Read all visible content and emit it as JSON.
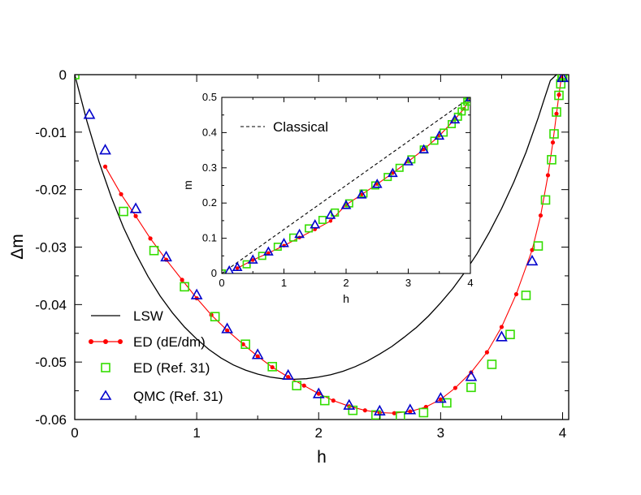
{
  "chart_data": [
    {
      "type": "scatter",
      "title": "",
      "xlabel": "h",
      "ylabel": "Δm",
      "xlim": [
        0,
        4.05
      ],
      "ylim": [
        -0.06,
        0
      ],
      "xticks": [
        "0",
        "1",
        "2",
        "3",
        "4"
      ],
      "yticks": [
        "0",
        "-0.01",
        "-0.02",
        "-0.03",
        "-0.04",
        "-0.05",
        "-0.06"
      ],
      "legend": {
        "position": "lower-left",
        "entries": [
          "LSW",
          "ED (dE/dm)",
          "ED (Ref. 31)",
          "QMC (Ref. 31)"
        ]
      },
      "series": [
        {
          "name": "LSW",
          "style": "line",
          "color": "#000000",
          "x": [
            0,
            0.1,
            0.2,
            0.3,
            0.4,
            0.5,
            0.6,
            0.7,
            0.8,
            0.9,
            1.0,
            1.1,
            1.2,
            1.3,
            1.4,
            1.5,
            1.6,
            1.7,
            1.8,
            1.9,
            2.0,
            2.1,
            2.2,
            2.3,
            2.4,
            2.5,
            2.6,
            2.7,
            2.8,
            2.9,
            3.0,
            3.1,
            3.2,
            3.3,
            3.4,
            3.5,
            3.6,
            3.7,
            3.8,
            3.85,
            3.9,
            3.95,
            4.0
          ],
          "y": [
            0,
            -0.0081,
            -0.0152,
            -0.0213,
            -0.0266,
            -0.0311,
            -0.0351,
            -0.0385,
            -0.0414,
            -0.0439,
            -0.046,
            -0.0478,
            -0.0493,
            -0.0505,
            -0.0514,
            -0.0521,
            -0.0526,
            -0.0529,
            -0.053,
            -0.0529,
            -0.0526,
            -0.0522,
            -0.0516,
            -0.0508,
            -0.0498,
            -0.0486,
            -0.0473,
            -0.0457,
            -0.044,
            -0.042,
            -0.0397,
            -0.0372,
            -0.0343,
            -0.0311,
            -0.0274,
            -0.0233,
            -0.0187,
            -0.0135,
            -0.0075,
            -0.0042,
            -0.001,
            0,
            0
          ]
        },
        {
          "name": "ED (dE/dm)",
          "style": "line+dots",
          "color": "#ff0000",
          "x": [
            0.25,
            0.38,
            0.5,
            0.62,
            0.75,
            0.88,
            1.0,
            1.12,
            1.25,
            1.38,
            1.5,
            1.62,
            1.75,
            1.88,
            2.0,
            2.12,
            2.25,
            2.38,
            2.5,
            2.62,
            2.75,
            2.88,
            3.0,
            3.12,
            3.25,
            3.38,
            3.5,
            3.62,
            3.75,
            3.82,
            3.88,
            3.92,
            3.95,
            3.97,
            3.99
          ],
          "y": [
            -0.016,
            -0.0208,
            -0.0246,
            -0.0285,
            -0.0322,
            -0.0357,
            -0.0389,
            -0.0418,
            -0.0445,
            -0.0469,
            -0.049,
            -0.0509,
            -0.0526,
            -0.0541,
            -0.0555,
            -0.0567,
            -0.0577,
            -0.0584,
            -0.0588,
            -0.0589,
            -0.0586,
            -0.0578,
            -0.0565,
            -0.0545,
            -0.0518,
            -0.0483,
            -0.0439,
            -0.0382,
            -0.0305,
            -0.0245,
            -0.0175,
            -0.0118,
            -0.0068,
            -0.0035,
            -0.0005
          ]
        },
        {
          "name": "ED (Ref. 31)",
          "style": "marker-square",
          "color": "#33dd00",
          "x": [
            0,
            0.4,
            0.65,
            0.9,
            1.15,
            1.4,
            1.62,
            1.82,
            2.05,
            2.28,
            2.47,
            2.67,
            2.86,
            3.05,
            3.25,
            3.42,
            3.57,
            3.7,
            3.8,
            3.86,
            3.91,
            3.93,
            3.95,
            3.97,
            3.985,
            3.995,
            4.0
          ],
          "y": [
            0,
            -0.0238,
            -0.0306,
            -0.0369,
            -0.0421,
            -0.0469,
            -0.0508,
            -0.0541,
            -0.0567,
            -0.0584,
            -0.0592,
            -0.0594,
            -0.0588,
            -0.0571,
            -0.0544,
            -0.0504,
            -0.0452,
            -0.0384,
            -0.0298,
            -0.0218,
            -0.0148,
            -0.0103,
            -0.0065,
            -0.0036,
            -0.0016,
            -0.0004,
            0
          ]
        },
        {
          "name": "QMC (Ref. 31)",
          "style": "marker-triangle",
          "color": "#0000cc",
          "x": [
            0.12,
            0.25,
            0.5,
            0.75,
            1.0,
            1.25,
            1.5,
            1.75,
            2.0,
            2.25,
            2.5,
            2.75,
            3.0,
            3.25,
            3.5,
            3.75,
            4.0
          ],
          "y": [
            -0.0069,
            -0.0131,
            -0.0233,
            -0.0317,
            -0.0383,
            -0.0442,
            -0.0487,
            -0.0523,
            -0.0555,
            -0.0575,
            -0.0585,
            -0.0583,
            -0.0563,
            -0.0525,
            -0.0456,
            -0.0324,
            -0.0005
          ]
        }
      ]
    },
    {
      "type": "scatter",
      "role": "inset",
      "xlabel": "h",
      "ylabel": "m",
      "xlim": [
        0,
        4
      ],
      "ylim": [
        0,
        0.5
      ],
      "xticks": [
        "0",
        "1",
        "2",
        "3",
        "4"
      ],
      "yticks": [
        "0",
        "0.1",
        "0.2",
        "0.3",
        "0.4",
        "0.5"
      ],
      "legend": {
        "position": "top-left",
        "entries": [
          "Classical"
        ]
      },
      "series": [
        {
          "name": "Classical",
          "style": "dashed-line",
          "color": "#000000",
          "x": [
            0,
            4
          ],
          "y": [
            0,
            0.5
          ]
        },
        {
          "name": "ED (dE/dm)",
          "style": "line+dots",
          "color": "#ff0000",
          "x": [
            0.25,
            0.5,
            0.75,
            1.0,
            1.25,
            1.5,
            1.75,
            2.0,
            2.25,
            2.5,
            2.75,
            3.0,
            3.25,
            3.5,
            3.75,
            3.9,
            4.0
          ],
          "y": [
            0.015,
            0.038,
            0.058,
            0.079,
            0.102,
            0.125,
            0.149,
            0.195,
            0.224,
            0.254,
            0.285,
            0.318,
            0.352,
            0.391,
            0.438,
            0.468,
            0.5
          ]
        },
        {
          "name": "ED (Ref. 31)",
          "style": "marker-square",
          "color": "#33dd00",
          "x": [
            0,
            0.4,
            0.65,
            0.9,
            1.15,
            1.4,
            1.62,
            1.82,
            2.05,
            2.28,
            2.47,
            2.67,
            2.86,
            3.05,
            3.25,
            3.42,
            3.57,
            3.7,
            3.8,
            3.86,
            3.91,
            3.95,
            3.98,
            4.0
          ],
          "y": [
            0,
            0.026,
            0.05,
            0.076,
            0.102,
            0.128,
            0.152,
            0.173,
            0.199,
            0.227,
            0.25,
            0.274,
            0.3,
            0.324,
            0.352,
            0.377,
            0.4,
            0.424,
            0.445,
            0.46,
            0.474,
            0.488,
            0.495,
            0.5
          ]
        },
        {
          "name": "QMC (Ref. 31)",
          "style": "marker-triangle",
          "color": "#0000cc",
          "x": [
            0.12,
            0.25,
            0.5,
            0.75,
            1.0,
            1.25,
            1.5,
            1.75,
            2.0,
            2.25,
            2.5,
            2.75,
            3.0,
            3.25,
            3.5,
            3.75,
            4.0
          ],
          "y": [
            0.008,
            0.018,
            0.039,
            0.062,
            0.086,
            0.112,
            0.139,
            0.166,
            0.194,
            0.224,
            0.254,
            0.285,
            0.318,
            0.352,
            0.391,
            0.437,
            0.5
          ]
        }
      ]
    }
  ]
}
